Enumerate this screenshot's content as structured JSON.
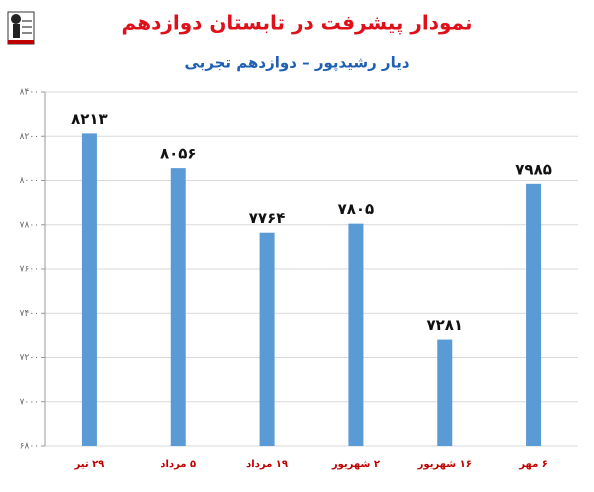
{
  "chart_data": {
    "type": "bar",
    "title": "نمودار پیشرفت در تابستان دوازدهم",
    "subtitle": "دیار رشیدپور – دوازدهم تجربی",
    "categories": [
      "۲۹ تیر",
      "۵ مرداد",
      "۱۹ مرداد",
      "۲ شهریور",
      "۱۶ شهریور",
      "۶ مهر"
    ],
    "values": [
      8213,
      8056,
      7764,
      7805,
      7281,
      7985
    ],
    "value_labels": [
      "۸۲۱۳",
      "۸۰۵۶",
      "۷۷۶۴",
      "۷۸۰۵",
      "۷۲۸۱",
      "۷۹۸۵"
    ],
    "color": "#5b9bd5",
    "ylim": [
      6800,
      8400
    ],
    "yticks": [
      {
        "value": 6800,
        "label": "۶۸۰۰"
      },
      {
        "value": 7000,
        "label": "۷۰۰۰"
      },
      {
        "value": 7200,
        "label": "۷۲۰۰"
      },
      {
        "value": 7400,
        "label": "۷۴۰۰"
      },
      {
        "value": 7600,
        "label": "۷۶۰۰"
      },
      {
        "value": 7800,
        "label": "۷۸۰۰"
      },
      {
        "value": 8000,
        "label": "۸۰۰۰"
      },
      {
        "value": 8200,
        "label": "۸۲۰۰"
      },
      {
        "value": 8400,
        "label": "۸۴۰۰"
      }
    ],
    "grid": true
  }
}
